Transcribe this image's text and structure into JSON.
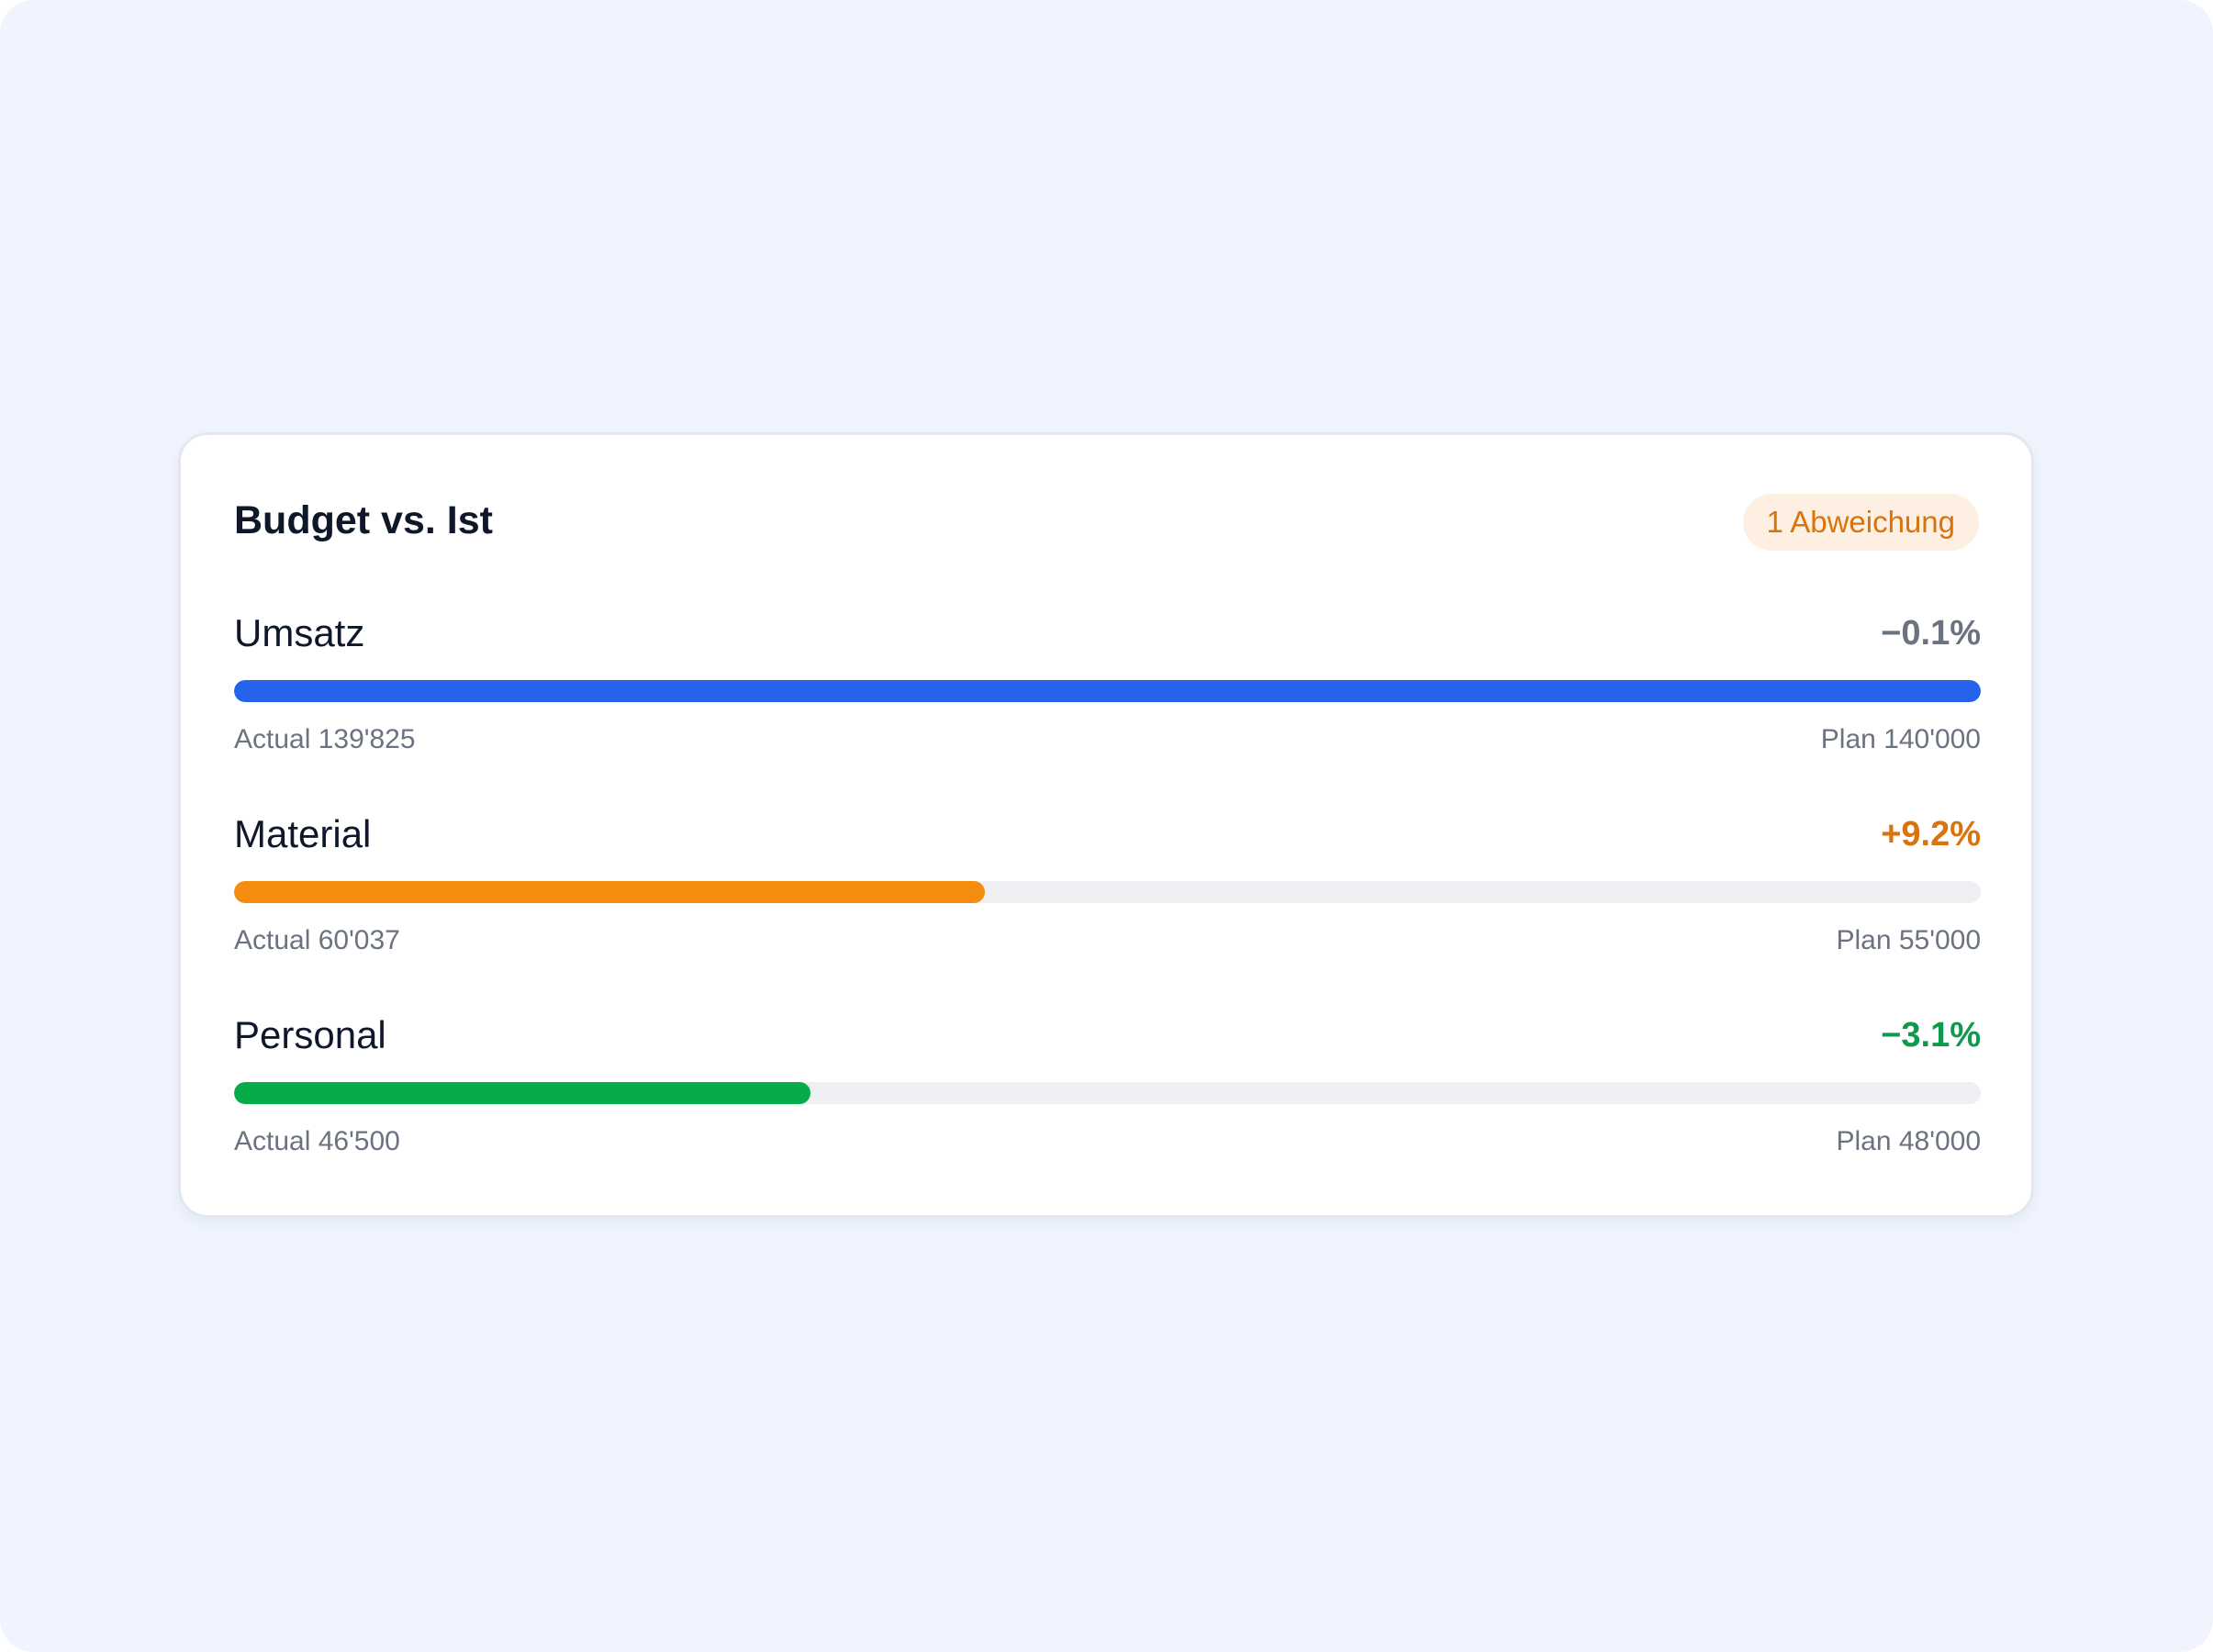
{
  "card": {
    "title": "Budget vs. Ist",
    "badge": "1 Abweichung",
    "badge_color": "#d9730c"
  },
  "rows": [
    {
      "name": "Umsatz",
      "delta": "−0.1%",
      "delta_color": "#6b7280",
      "bar_color": "#2563eb",
      "progress": 1.0,
      "actual": "Actual 139'825",
      "plan": "Plan 140'000"
    },
    {
      "name": "Material",
      "delta": "+9.2%",
      "delta_color": "#d9730c",
      "bar_color": "#f48c10",
      "progress": 0.43,
      "actual": "Actual 60'037",
      "plan": "Plan 55'000"
    },
    {
      "name": "Personal",
      "delta": "−3.1%",
      "delta_color": "#0e9a4a",
      "bar_color": "#07ac4a",
      "progress": 0.33,
      "actual": "Actual 46'500",
      "plan": "Plan 48'000"
    }
  ]
}
